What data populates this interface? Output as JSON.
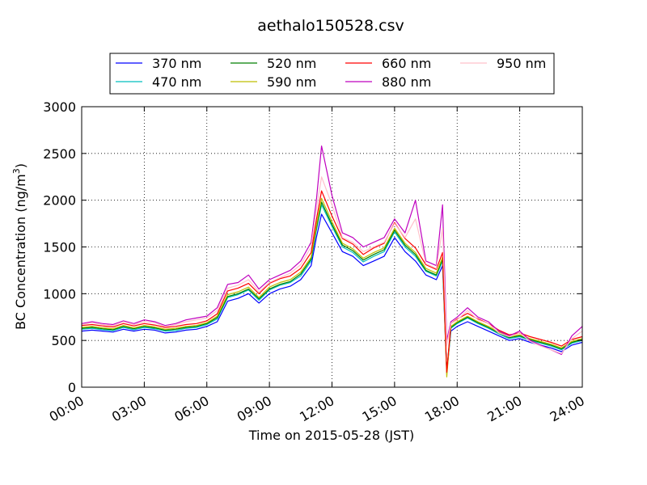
{
  "chart_data": {
    "type": "line",
    "title": "aethalo150528.csv",
    "xlabel": "Time on 2015-05-28 (JST)",
    "ylabel": "BC Concentration (ng/m",
    "ylabel_sup": "3",
    "ylabel_close": ")",
    "xlim": [
      0,
      24
    ],
    "ylim": [
      0,
      3000
    ],
    "xticks": [
      0,
      3,
      6,
      9,
      12,
      15,
      18,
      21,
      24
    ],
    "xtick_labels": [
      "00:00",
      "03:00",
      "06:00",
      "09:00",
      "12:00",
      "15:00",
      "18:00",
      "21:00",
      "24:00"
    ],
    "yticks": [
      0,
      500,
      1000,
      1500,
      2000,
      2500,
      3000
    ],
    "ytick_labels": [
      "0",
      "500",
      "1000",
      "1500",
      "2000",
      "2500",
      "3000"
    ],
    "grid": true,
    "legend_placement": "top-center",
    "x": [
      0,
      0.5,
      1,
      1.5,
      2,
      2.5,
      3,
      3.5,
      4,
      4.5,
      5,
      5.5,
      6,
      6.5,
      7,
      7.5,
      8,
      8.5,
      9,
      9.5,
      10,
      10.5,
      11,
      11.25,
      11.5,
      12,
      12.5,
      13,
      13.5,
      14,
      14.5,
      15,
      15.5,
      16,
      16.5,
      17,
      17.3,
      17.5,
      17.7,
      18,
      18.5,
      19,
      19.5,
      20,
      20.5,
      21,
      21.5,
      22,
      22.5,
      23,
      23.5,
      24
    ],
    "series": [
      {
        "name": "370 nm",
        "color": "#0000ff",
        "values": [
          600,
          610,
          600,
          590,
          620,
          600,
          620,
          610,
          580,
          590,
          610,
          620,
          650,
          700,
          920,
          950,
          1000,
          900,
          1000,
          1050,
          1080,
          1150,
          1300,
          1600,
          1850,
          1650,
          1450,
          1400,
          1300,
          1350,
          1400,
          1600,
          1450,
          1350,
          1200,
          1150,
          1300,
          150,
          600,
          650,
          700,
          650,
          600,
          550,
          500,
          520,
          480,
          450,
          420,
          380,
          450,
          480
        ]
      },
      {
        "name": "470 nm",
        "color": "#00bfbf",
        "values": [
          620,
          630,
          615,
          605,
          640,
          615,
          640,
          625,
          600,
          605,
          630,
          640,
          670,
          730,
          960,
          990,
          1040,
          930,
          1040,
          1090,
          1120,
          1190,
          1350,
          1680,
          1950,
          1720,
          1500,
          1440,
          1340,
          1400,
          1450,
          1660,
          1500,
          1400,
          1240,
          1190,
          1350,
          160,
          630,
          680,
          740,
          680,
          630,
          570,
          520,
          540,
          500,
          470,
          440,
          400,
          470,
          500
        ]
      },
      {
        "name": "520 nm",
        "color": "#007f00",
        "values": [
          630,
          640,
          625,
          615,
          650,
          625,
          650,
          635,
          610,
          620,
          640,
          650,
          680,
          745,
          970,
          1000,
          1050,
          945,
          1050,
          1100,
          1130,
          1210,
          1370,
          1700,
          1980,
          1740,
          1520,
          1460,
          1360,
          1420,
          1470,
          1680,
          1520,
          1420,
          1250,
          1200,
          1370,
          170,
          640,
          690,
          750,
          690,
          640,
          580,
          530,
          550,
          510,
          480,
          450,
          410,
          480,
          510
        ]
      },
      {
        "name": "590 nm",
        "color": "#bfbf00",
        "values": [
          640,
          650,
          635,
          625,
          660,
          635,
          660,
          645,
          620,
          630,
          650,
          660,
          690,
          760,
          990,
          1020,
          1070,
          960,
          1070,
          1120,
          1150,
          1230,
          1390,
          1730,
          2020,
          1770,
          1540,
          1480,
          1380,
          1440,
          1490,
          1700,
          1540,
          1440,
          1270,
          1220,
          1390,
          110,
          650,
          700,
          760,
          700,
          650,
          590,
          540,
          560,
          520,
          490,
          460,
          420,
          490,
          520
        ]
      },
      {
        "name": "660 nm",
        "color": "#ff0000",
        "values": [
          660,
          670,
          655,
          645,
          680,
          655,
          680,
          665,
          640,
          650,
          670,
          680,
          710,
          785,
          1030,
          1060,
          1110,
          1000,
          1110,
          1160,
          1190,
          1270,
          1440,
          1790,
          2100,
          1830,
          1590,
          1530,
          1420,
          1490,
          1540,
          1760,
          1590,
          1490,
          1310,
          1260,
          1440,
          160,
          680,
          730,
          790,
          730,
          680,
          610,
          560,
          580,
          540,
          510,
          480,
          440,
          510,
          540
        ]
      },
      {
        "name": "880 nm",
        "color": "#bf00bf",
        "values": [
          680,
          700,
          680,
          670,
          710,
          680,
          720,
          700,
          660,
          680,
          720,
          740,
          760,
          850,
          1100,
          1120,
          1200,
          1050,
          1150,
          1200,
          1250,
          1350,
          1550,
          2000,
          2580,
          2050,
          1650,
          1600,
          1500,
          1550,
          1600,
          1800,
          1650,
          2000,
          1350,
          1300,
          1950,
          500,
          700,
          750,
          850,
          750,
          700,
          600,
          550,
          600,
          500,
          450,
          400,
          350,
          550,
          650
        ]
      },
      {
        "name": "950 nm",
        "color": "#ffc0cb",
        "values": [
          670,
          690,
          670,
          660,
          700,
          670,
          700,
          690,
          650,
          670,
          700,
          720,
          740,
          820,
          1060,
          1090,
          1150,
          1020,
          1120,
          1170,
          1220,
          1310,
          1500,
          1900,
          2250,
          1950,
          1600,
          1550,
          1450,
          1500,
          1550,
          1750,
          1600,
          1800,
          1320,
          1270,
          1700,
          450,
          680,
          720,
          820,
          720,
          680,
          580,
          540,
          580,
          490,
          440,
          400,
          360,
          520,
          600
        ]
      }
    ]
  }
}
